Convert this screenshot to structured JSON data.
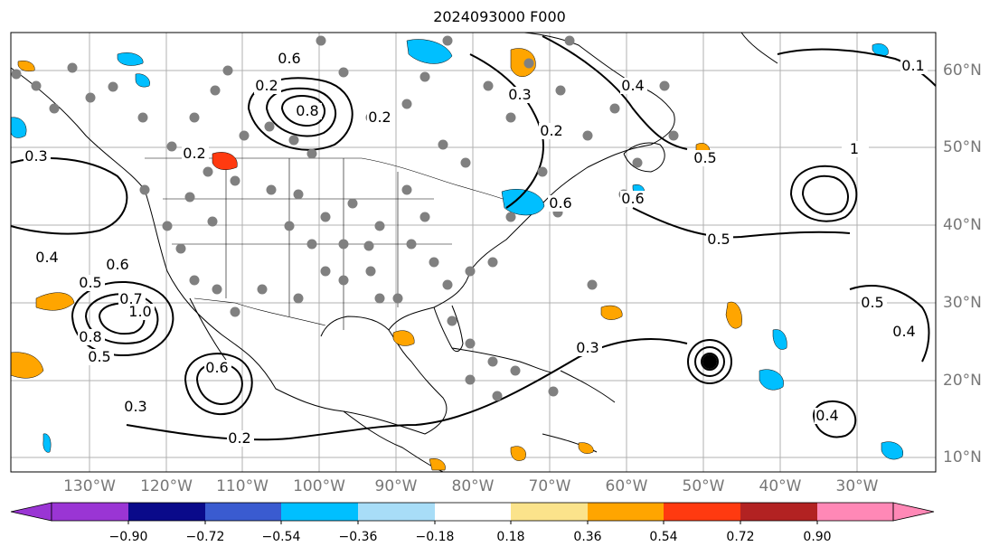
{
  "title": "2024093000 F000",
  "lat_labels": [
    "60°N",
    "50°N",
    "40°N",
    "30°N",
    "20°N",
    "10°N"
  ],
  "lon_labels": [
    "130°W",
    "120°W",
    "110°W",
    "100°W",
    "90°W",
    "80°W",
    "70°W",
    "60°W",
    "50°W",
    "40°W",
    "30°W"
  ],
  "colorbar": {
    "ticks": [
      "−0.90",
      "−0.72",
      "−0.54",
      "−0.36",
      "−0.18",
      "0.18",
      "0.36",
      "0.54",
      "0.72",
      "0.90"
    ],
    "colors": [
      "#9a35d4",
      "#0a0a8a",
      "#3a5bd0",
      "#00bfff",
      "#a8ddf7",
      "#ffffff",
      "#fbe38b",
      "#ffa500",
      "#ff3a10",
      "#b22222",
      "#ff88b6"
    ]
  },
  "contour_labels": [
    "0.3",
    "0.4",
    "0.5",
    "0.6",
    "0.7",
    "0.8",
    "1.0",
    "0.2",
    "0.1",
    "0.5",
    "0.6",
    "0.3",
    "0.2",
    "0.8",
    "0.6",
    "0.4",
    "1",
    "0.5",
    "0.3",
    "0.4",
    "0.5",
    "0.6",
    "0.2",
    "0.2",
    "0.3",
    "0.2",
    "0.6",
    "0.5",
    "0.4"
  ],
  "map": {
    "land_border_color": "#000000",
    "gridline_color": "#b0b0b0",
    "station_dot_color": "#808080"
  }
}
